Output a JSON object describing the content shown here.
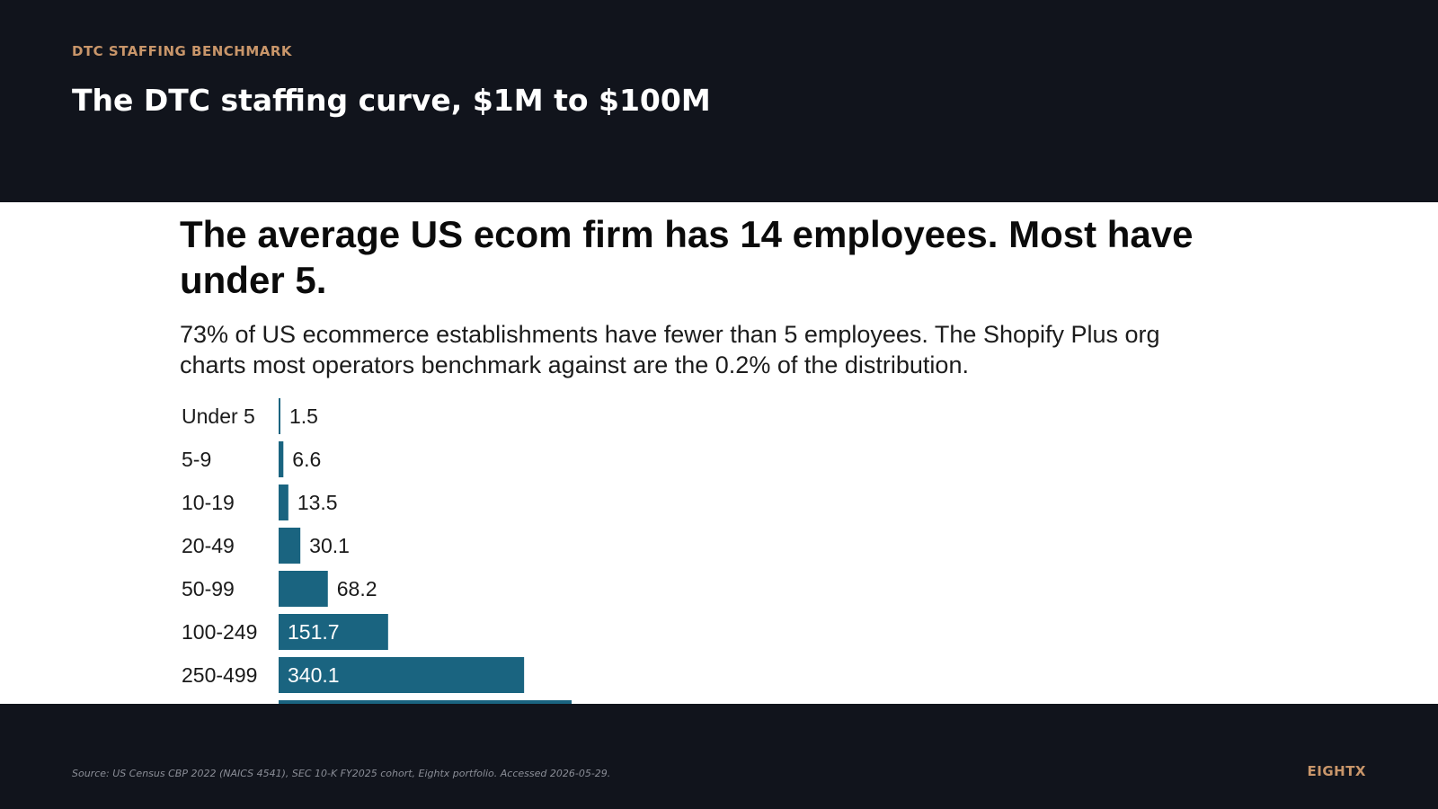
{
  "header": {
    "eyebrow": "DTC STAFFING BENCHMARK",
    "title": "The DTC staffing curve, $1M to $100M"
  },
  "panel": {
    "headline": "The average US ecom firm has 14 employees. Most have under 5.",
    "subhead": "73% of US ecommerce establishments have fewer than 5 employees. The Shopify Plus org charts most operators benchmark against are the 0.2% of the distribution."
  },
  "footer": {
    "source": "Source: US Census CBP 2022 (NAICS 4541), SEC 10-K FY2025 cohort, Eightx portfolio. Accessed 2026-05-29.",
    "brand": "EIGHTX"
  },
  "colors": {
    "background": "#11141c",
    "accent": "#c9966a",
    "bar": "#1a6480"
  },
  "chart_data": {
    "type": "bar",
    "orientation": "horizontal",
    "categories": [
      "Under 5",
      "5-9",
      "10-19",
      "20-49",
      "50-99",
      "100-249",
      "250-499"
    ],
    "values": [
      1.5,
      6.6,
      13.5,
      30.1,
      68.2,
      151.7,
      340.1
    ],
    "value_labels": [
      "1.5",
      "6.6",
      "13.5",
      "30.1",
      "68.2",
      "151.7",
      "340.1"
    ],
    "title": "",
    "xlabel": "",
    "ylabel": "",
    "xlim": [
      0,
      1600
    ],
    "grid": false,
    "legend": "none"
  }
}
